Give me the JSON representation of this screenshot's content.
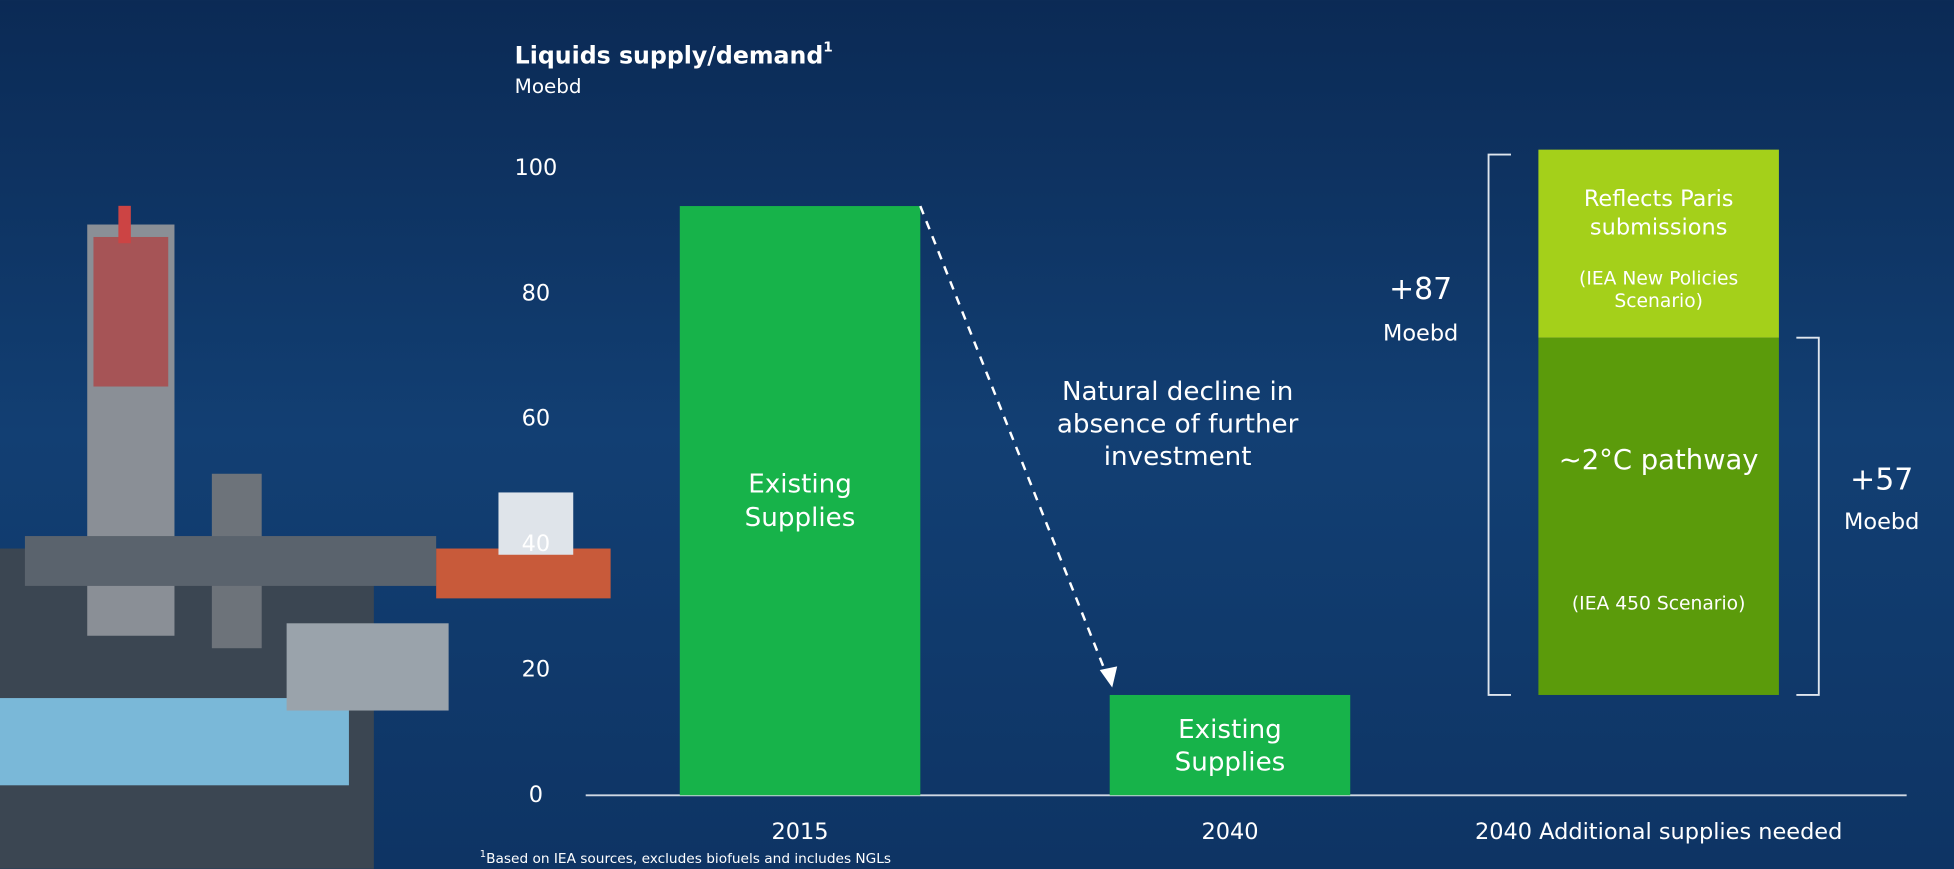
{
  "chart_data": {
    "type": "bar",
    "title": "Liquids supply/demand",
    "title_note_mark": "1",
    "subtitle": "Moebd",
    "categories": [
      "2015",
      "2040",
      "2040 Additional supplies needed"
    ],
    "series": [
      {
        "name": "Existing Supplies",
        "color": "#17b34a",
        "values": [
          94,
          16,
          null
        ]
      },
      {
        "name": "~2°C pathway",
        "note": "(IEA 450 Scenario)",
        "color": "#5b9b0b",
        "values": [
          null,
          null,
          57
        ]
      },
      {
        "name": "Reflects Paris submissions",
        "note": "(IEA New Policies Scenario)",
        "color": "#a4d01a",
        "values": [
          null,
          null,
          30
        ]
      }
    ],
    "ylim": [
      0,
      100
    ],
    "yticks": [
      0,
      20,
      40,
      60,
      80,
      100
    ],
    "annotation": "Natural decline in absence of further investment",
    "brackets": [
      {
        "label": "+87",
        "unit": "Moebd"
      },
      {
        "label": "+57",
        "unit": "Moebd"
      }
    ],
    "footnote_mark": "1",
    "footnote": "Based on IEA sources, excludes biofuels and includes NGLs"
  }
}
